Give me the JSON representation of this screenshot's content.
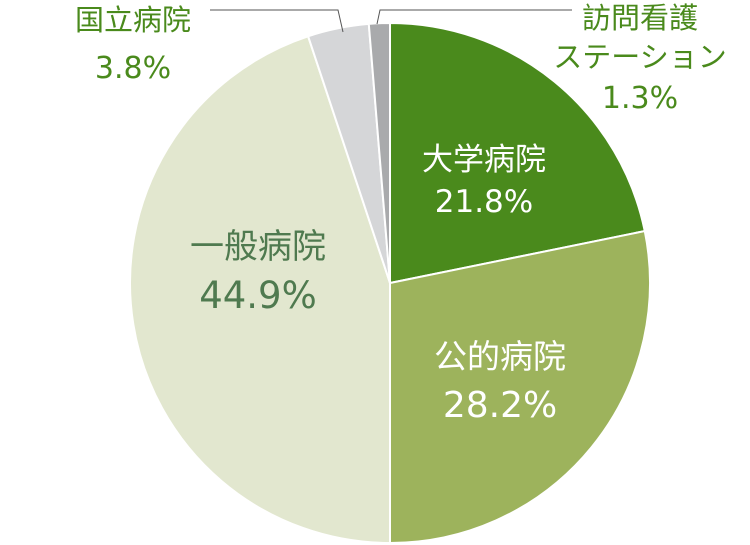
{
  "chart_data": {
    "type": "pie",
    "start": "top",
    "direction": "clockwise",
    "legend": "none",
    "slices": [
      {
        "label": "大学病院",
        "label_line2": "",
        "value": 21.8,
        "value_text": "21.8%",
        "color": "#4a8a1c",
        "text_color": "#ffffff"
      },
      {
        "label": "公的病院",
        "label_line2": "",
        "value": 28.2,
        "value_text": "28.2%",
        "color": "#9db35c",
        "text_color": "#ffffff"
      },
      {
        "label": "一般病院",
        "label_line2": "",
        "value": 44.9,
        "value_text": "44.9%",
        "color": "#e2e7cf",
        "text_color": "#4f7a4f"
      },
      {
        "label": "国立病院",
        "label_line2": "",
        "value": 3.8,
        "value_text": "3.8%",
        "color": "#d5d6d8",
        "text_color": "#4a8a1c"
      },
      {
        "label": "訪問看護",
        "label_line2": "ステーション",
        "value": 1.3,
        "value_text": "1.3%",
        "color": "#a9aaac",
        "text_color": "#4a8a1c"
      }
    ]
  }
}
